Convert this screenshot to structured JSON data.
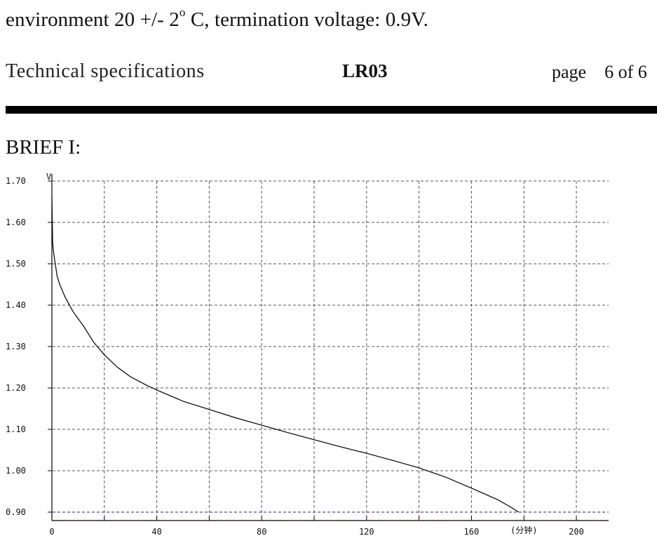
{
  "header_text": {
    "condition_prefix": "environment 20 +/- 2",
    "condition_degree": "o",
    "condition_suffix": " C, termination voltage: 0.9V.",
    "doc_title": "Technical specifications",
    "model": "LR03",
    "page_label": "page",
    "page_number": "6 of 6"
  },
  "section_title": "BRIEF I:",
  "chart_data": {
    "type": "line",
    "title": "",
    "xlabel": "(分钟)",
    "ylabel": "V",
    "xlim": [
      0,
      200
    ],
    "ylim": [
      0.9,
      1.7
    ],
    "x_ticks": [
      0,
      40,
      80,
      120,
      160,
      200
    ],
    "x_tick_labels": [
      "0",
      "40",
      "80",
      "120",
      "160",
      "200"
    ],
    "y_ticks": [
      0.9,
      1.0,
      1.1,
      1.2,
      1.3,
      1.4,
      1.5,
      1.6,
      1.7
    ],
    "y_tick_labels": [
      "0.90",
      "1.00",
      "1.10",
      "1.20",
      "1.30",
      "1.40",
      "1.50",
      "1.60",
      "1.70"
    ],
    "grid": true,
    "grid_style": "dashed",
    "series": [
      {
        "values": [
          [
            0,
            1.66
          ],
          [
            0.3,
            1.55
          ],
          [
            0.8,
            1.52
          ],
          [
            2,
            1.47
          ],
          [
            3,
            1.45
          ],
          [
            5,
            1.42
          ],
          [
            8,
            1.385
          ],
          [
            12,
            1.35
          ],
          [
            16,
            1.31
          ],
          [
            20,
            1.28
          ],
          [
            25,
            1.25
          ],
          [
            30,
            1.227
          ],
          [
            36,
            1.207
          ],
          [
            40,
            1.195
          ],
          [
            50,
            1.168
          ],
          [
            60,
            1.148
          ],
          [
            70,
            1.128
          ],
          [
            80,
            1.11
          ],
          [
            90,
            1.092
          ],
          [
            100,
            1.075
          ],
          [
            110,
            1.058
          ],
          [
            120,
            1.042
          ],
          [
            130,
            1.025
          ],
          [
            140,
            1.007
          ],
          [
            150,
            0.985
          ],
          [
            160,
            0.958
          ],
          [
            170,
            0.93
          ],
          [
            175,
            0.912
          ],
          [
            178,
            0.9
          ]
        ]
      }
    ],
    "colors": {
      "line": "#000000",
      "grid": "#555555",
      "axis": "#000000",
      "cutoff": "#1a1a99"
    }
  }
}
